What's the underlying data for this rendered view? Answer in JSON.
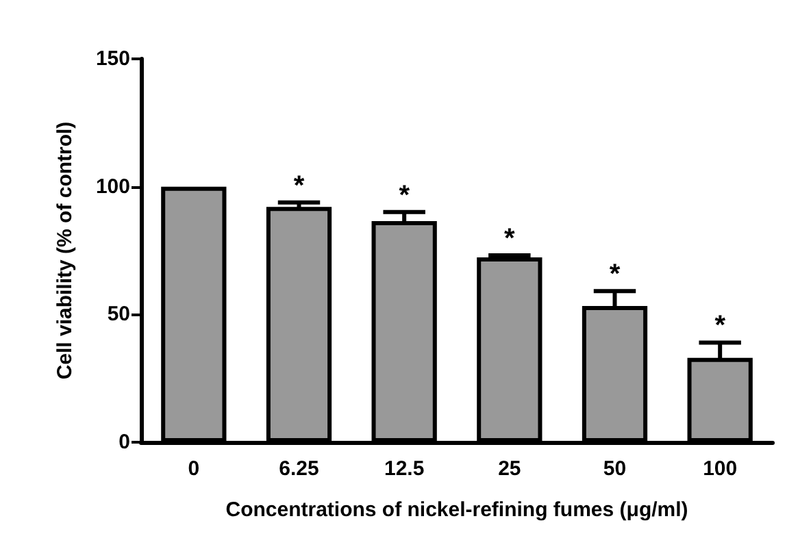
{
  "chart_data": {
    "type": "bar",
    "xlabel": "Concentrations of nickel-refining fumes (μg/ml)",
    "ylabel": "Cell viability (% of control)",
    "categories": [
      "0",
      "6.25",
      "12.5",
      "25",
      "50",
      "100"
    ],
    "values": [
      100,
      92.1,
      86.5,
      72.3,
      53.3,
      33
    ],
    "errors": [
      null,
      1.7,
      3.6,
      0.8,
      5.8,
      6
    ],
    "color": "#999999",
    "ylim": [
      0,
      150
    ],
    "yticks": [
      0,
      50,
      100,
      150
    ],
    "grid": false,
    "annotations": [
      {
        "text": "*",
        "x": "6.25",
        "y": 92.1
      },
      {
        "text": "*",
        "x": "12.5",
        "y": 86.5
      },
      {
        "text": "*",
        "x": "25",
        "y": 72.3
      },
      {
        "text": "*",
        "x": "50",
        "y": 53.3
      },
      {
        "text": "*",
        "x": "100",
        "y": 33
      }
    ]
  }
}
